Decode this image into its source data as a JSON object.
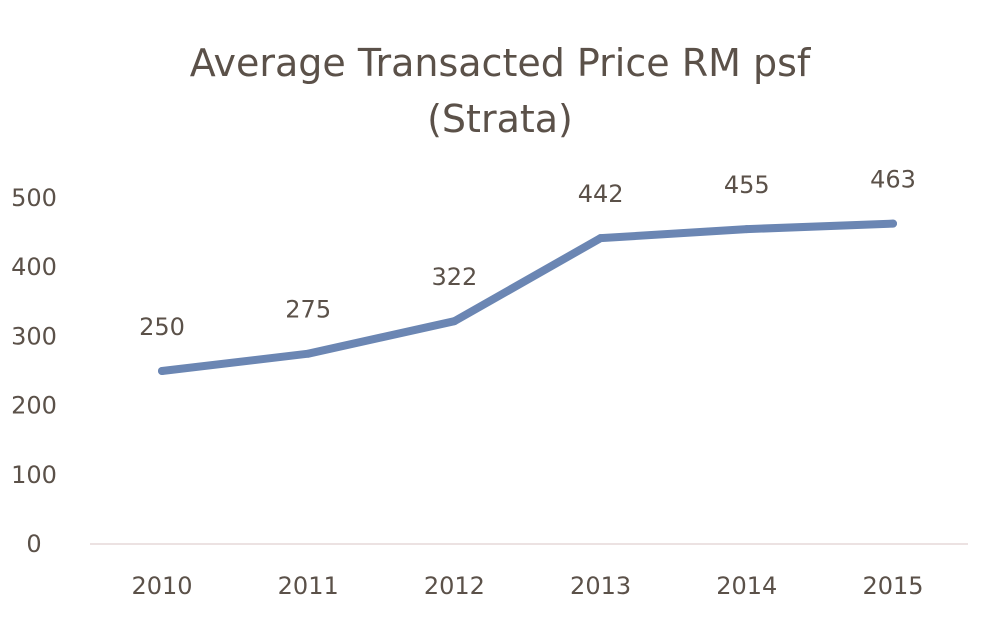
{
  "chart_data": {
    "type": "line",
    "title_lines": [
      "Average Transacted Price RM psf",
      "(Strata)"
    ],
    "categories": [
      "2010",
      "2011",
      "2012",
      "2013",
      "2014",
      "2015"
    ],
    "series": [
      {
        "values": [
          250,
          275,
          322,
          442,
          455,
          463
        ]
      }
    ],
    "data_labels": [
      "250",
      "275",
      "322",
      "442",
      "455",
      "463"
    ],
    "ylim": [
      0,
      500
    ],
    "yticks": [
      0,
      100,
      200,
      300,
      400,
      500
    ],
    "grid": false,
    "legend": "none",
    "colors": {
      "line": "#6b86b3",
      "text": "#5b5149",
      "axis": "#e6d9d9"
    }
  }
}
